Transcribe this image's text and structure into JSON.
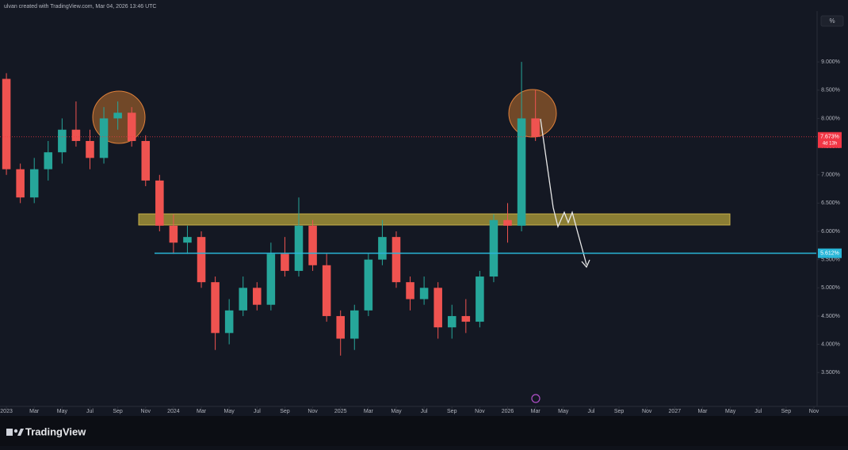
{
  "header": {
    "caption": "ulvan created with TradingView.com, Mar 04, 2026 13:46 UTC",
    "scale_button": "%"
  },
  "footer": {
    "brand": "TradingView"
  },
  "chart_data": {
    "type": "candlestick",
    "x": [
      0,
      1,
      2,
      3,
      4,
      5,
      6,
      7,
      8,
      9,
      10,
      11,
      12,
      13,
      14,
      15,
      16,
      17,
      18,
      19,
      20,
      21,
      22,
      23,
      24,
      25,
      26,
      27,
      28,
      29,
      30,
      31,
      32,
      33,
      34,
      35,
      36,
      37,
      38
    ],
    "open": [
      8.7,
      7.1,
      6.6,
      7.1,
      7.4,
      7.8,
      7.6,
      7.3,
      8.0,
      8.1,
      7.6,
      6.9,
      6.1,
      5.8,
      5.9,
      5.1,
      4.2,
      4.6,
      5.0,
      4.7,
      5.6,
      5.3,
      6.1,
      5.4,
      4.5,
      4.1,
      4.6,
      5.5,
      5.9,
      5.1,
      4.8,
      5.0,
      4.3,
      4.5,
      4.4,
      5.2,
      6.2,
      6.1,
      8.0
    ],
    "high": [
      8.8,
      7.2,
      7.3,
      7.6,
      8.0,
      8.3,
      7.8,
      8.2,
      8.3,
      8.2,
      7.7,
      7.0,
      6.3,
      6.1,
      6.0,
      5.2,
      4.8,
      5.2,
      5.1,
      5.8,
      5.9,
      6.6,
      6.2,
      5.6,
      4.6,
      4.7,
      5.6,
      6.2,
      6.0,
      5.2,
      5.2,
      5.1,
      4.7,
      4.8,
      5.3,
      6.3,
      6.5,
      9.0,
      8.5
    ],
    "low": [
      7.0,
      6.5,
      6.5,
      6.9,
      7.2,
      7.5,
      7.1,
      7.2,
      7.8,
      7.5,
      6.8,
      6.0,
      5.6,
      5.6,
      5.0,
      3.9,
      4.0,
      4.5,
      4.6,
      4.6,
      5.2,
      5.2,
      5.3,
      4.4,
      3.8,
      3.9,
      4.5,
      5.4,
      5.0,
      4.6,
      4.7,
      4.1,
      4.1,
      4.2,
      4.3,
      5.1,
      5.8,
      6.0,
      7.6
    ],
    "close": [
      7.1,
      6.6,
      7.1,
      7.4,
      7.8,
      7.6,
      7.3,
      8.0,
      8.1,
      7.6,
      6.9,
      6.1,
      5.8,
      5.9,
      5.1,
      4.2,
      4.6,
      5.0,
      4.7,
      5.6,
      5.3,
      6.1,
      5.4,
      4.5,
      4.1,
      4.6,
      5.5,
      5.9,
      5.1,
      4.8,
      5.0,
      4.3,
      4.5,
      4.4,
      5.2,
      6.2,
      6.1,
      8.0,
      7.673
    ],
    "up_color": "#26a69a",
    "down_color": "#ef5350",
    "xlim": [
      -0.46,
      58.17
    ],
    "ylim": [
      2.9,
      9.9
    ],
    "yticks": [
      {
        "value": 9.0,
        "label": "9.000%"
      },
      {
        "value": 8.5,
        "label": "8.500%"
      },
      {
        "value": 8.0,
        "label": "8.000%"
      },
      {
        "value": 7.5,
        "label": "7.500%"
      },
      {
        "value": 7.0,
        "label": "7.000%"
      },
      {
        "value": 6.5,
        "label": "6.500%"
      },
      {
        "value": 6.0,
        "label": "6.000%"
      },
      {
        "value": 5.5,
        "label": "5.500%"
      },
      {
        "value": 5.0,
        "label": "5.000%"
      },
      {
        "value": 4.5,
        "label": "4.500%"
      },
      {
        "value": 4.0,
        "label": "4.000%"
      },
      {
        "value": 3.5,
        "label": "3.500%"
      }
    ],
    "xticks": [
      {
        "value": 0,
        "label": "2023"
      },
      {
        "value": 2,
        "label": "Mar"
      },
      {
        "value": 4,
        "label": "May"
      },
      {
        "value": 6,
        "label": "Jul"
      },
      {
        "value": 8,
        "label": "Sep"
      },
      {
        "value": 10,
        "label": "Nov"
      },
      {
        "value": 12,
        "label": "2024"
      },
      {
        "value": 14,
        "label": "Mar"
      },
      {
        "value": 16,
        "label": "May"
      },
      {
        "value": 18,
        "label": "Jul"
      },
      {
        "value": 20,
        "label": "Sep"
      },
      {
        "value": 22,
        "label": "Nov"
      },
      {
        "value": 24,
        "label": "2025"
      },
      {
        "value": 26,
        "label": "Mar"
      },
      {
        "value": 28,
        "label": "May"
      },
      {
        "value": 30,
        "label": "Jul"
      },
      {
        "value": 32,
        "label": "Sep"
      },
      {
        "value": 34,
        "label": "Nov"
      },
      {
        "value": 36,
        "label": "2026"
      },
      {
        "value": 38,
        "label": "Mar"
      },
      {
        "value": 40,
        "label": "May"
      },
      {
        "value": 42,
        "label": "Jul"
      },
      {
        "value": 44,
        "label": "Sep"
      },
      {
        "value": 46,
        "label": "Nov"
      },
      {
        "value": 48,
        "label": "2027"
      },
      {
        "value": 50,
        "label": "Mar"
      },
      {
        "value": 52,
        "label": "May"
      },
      {
        "value": 54,
        "label": "Jul"
      },
      {
        "value": 56,
        "label": "Sep"
      },
      {
        "value": 58,
        "label": "Nov"
      }
    ],
    "grid": false,
    "last_price": {
      "value": 7.673,
      "label": "7.673%",
      "countdown": "4d 13h",
      "color": "#f23645"
    },
    "level": {
      "value": 5.612,
      "label": "5.612%",
      "color": "#29b6d8"
    }
  }
}
